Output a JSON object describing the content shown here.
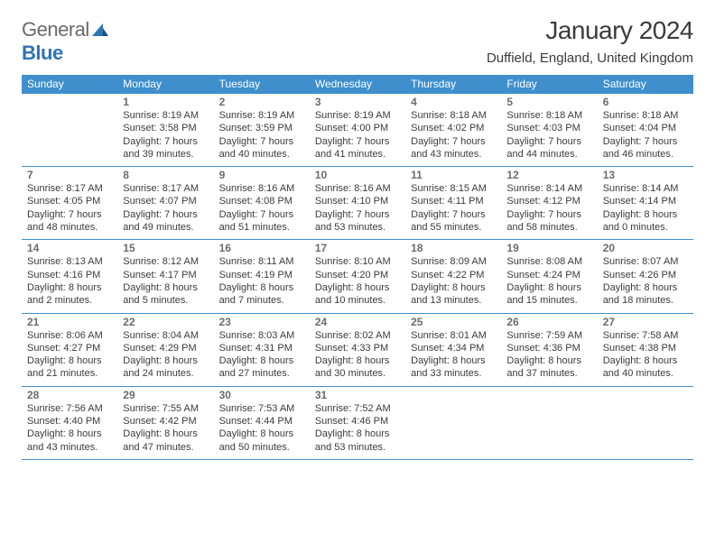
{
  "logo": {
    "general": "General",
    "blue": "Blue"
  },
  "title": "January 2024",
  "subtitle": "Duffield, England, United Kingdom",
  "colors": {
    "header_bg": "#3e8fcc",
    "header_fg": "#ffffff",
    "text": "#3b3b3b",
    "muted": "#6b6b6b",
    "rule": "#3e8fcc",
    "logo_blue": "#2f74b5",
    "background": "#ffffff"
  },
  "weekdays": [
    "Sunday",
    "Monday",
    "Tuesday",
    "Wednesday",
    "Thursday",
    "Friday",
    "Saturday"
  ],
  "weeks": [
    [
      null,
      {
        "n": "1",
        "sr": "8:19 AM",
        "ss": "3:58 PM",
        "d1": "Daylight: 7 hours",
        "d2": "and 39 minutes."
      },
      {
        "n": "2",
        "sr": "8:19 AM",
        "ss": "3:59 PM",
        "d1": "Daylight: 7 hours",
        "d2": "and 40 minutes."
      },
      {
        "n": "3",
        "sr": "8:19 AM",
        "ss": "4:00 PM",
        "d1": "Daylight: 7 hours",
        "d2": "and 41 minutes."
      },
      {
        "n": "4",
        "sr": "8:18 AM",
        "ss": "4:02 PM",
        "d1": "Daylight: 7 hours",
        "d2": "and 43 minutes."
      },
      {
        "n": "5",
        "sr": "8:18 AM",
        "ss": "4:03 PM",
        "d1": "Daylight: 7 hours",
        "d2": "and 44 minutes."
      },
      {
        "n": "6",
        "sr": "8:18 AM",
        "ss": "4:04 PM",
        "d1": "Daylight: 7 hours",
        "d2": "and 46 minutes."
      }
    ],
    [
      {
        "n": "7",
        "sr": "8:17 AM",
        "ss": "4:05 PM",
        "d1": "Daylight: 7 hours",
        "d2": "and 48 minutes."
      },
      {
        "n": "8",
        "sr": "8:17 AM",
        "ss": "4:07 PM",
        "d1": "Daylight: 7 hours",
        "d2": "and 49 minutes."
      },
      {
        "n": "9",
        "sr": "8:16 AM",
        "ss": "4:08 PM",
        "d1": "Daylight: 7 hours",
        "d2": "and 51 minutes."
      },
      {
        "n": "10",
        "sr": "8:16 AM",
        "ss": "4:10 PM",
        "d1": "Daylight: 7 hours",
        "d2": "and 53 minutes."
      },
      {
        "n": "11",
        "sr": "8:15 AM",
        "ss": "4:11 PM",
        "d1": "Daylight: 7 hours",
        "d2": "and 55 minutes."
      },
      {
        "n": "12",
        "sr": "8:14 AM",
        "ss": "4:12 PM",
        "d1": "Daylight: 7 hours",
        "d2": "and 58 minutes."
      },
      {
        "n": "13",
        "sr": "8:14 AM",
        "ss": "4:14 PM",
        "d1": "Daylight: 8 hours",
        "d2": "and 0 minutes."
      }
    ],
    [
      {
        "n": "14",
        "sr": "8:13 AM",
        "ss": "4:16 PM",
        "d1": "Daylight: 8 hours",
        "d2": "and 2 minutes."
      },
      {
        "n": "15",
        "sr": "8:12 AM",
        "ss": "4:17 PM",
        "d1": "Daylight: 8 hours",
        "d2": "and 5 minutes."
      },
      {
        "n": "16",
        "sr": "8:11 AM",
        "ss": "4:19 PM",
        "d1": "Daylight: 8 hours",
        "d2": "and 7 minutes."
      },
      {
        "n": "17",
        "sr": "8:10 AM",
        "ss": "4:20 PM",
        "d1": "Daylight: 8 hours",
        "d2": "and 10 minutes."
      },
      {
        "n": "18",
        "sr": "8:09 AM",
        "ss": "4:22 PM",
        "d1": "Daylight: 8 hours",
        "d2": "and 13 minutes."
      },
      {
        "n": "19",
        "sr": "8:08 AM",
        "ss": "4:24 PM",
        "d1": "Daylight: 8 hours",
        "d2": "and 15 minutes."
      },
      {
        "n": "20",
        "sr": "8:07 AM",
        "ss": "4:26 PM",
        "d1": "Daylight: 8 hours",
        "d2": "and 18 minutes."
      }
    ],
    [
      {
        "n": "21",
        "sr": "8:06 AM",
        "ss": "4:27 PM",
        "d1": "Daylight: 8 hours",
        "d2": "and 21 minutes."
      },
      {
        "n": "22",
        "sr": "8:04 AM",
        "ss": "4:29 PM",
        "d1": "Daylight: 8 hours",
        "d2": "and 24 minutes."
      },
      {
        "n": "23",
        "sr": "8:03 AM",
        "ss": "4:31 PM",
        "d1": "Daylight: 8 hours",
        "d2": "and 27 minutes."
      },
      {
        "n": "24",
        "sr": "8:02 AM",
        "ss": "4:33 PM",
        "d1": "Daylight: 8 hours",
        "d2": "and 30 minutes."
      },
      {
        "n": "25",
        "sr": "8:01 AM",
        "ss": "4:34 PM",
        "d1": "Daylight: 8 hours",
        "d2": "and 33 minutes."
      },
      {
        "n": "26",
        "sr": "7:59 AM",
        "ss": "4:36 PM",
        "d1": "Daylight: 8 hours",
        "d2": "and 37 minutes."
      },
      {
        "n": "27",
        "sr": "7:58 AM",
        "ss": "4:38 PM",
        "d1": "Daylight: 8 hours",
        "d2": "and 40 minutes."
      }
    ],
    [
      {
        "n": "28",
        "sr": "7:56 AM",
        "ss": "4:40 PM",
        "d1": "Daylight: 8 hours",
        "d2": "and 43 minutes."
      },
      {
        "n": "29",
        "sr": "7:55 AM",
        "ss": "4:42 PM",
        "d1": "Daylight: 8 hours",
        "d2": "and 47 minutes."
      },
      {
        "n": "30",
        "sr": "7:53 AM",
        "ss": "4:44 PM",
        "d1": "Daylight: 8 hours",
        "d2": "and 50 minutes."
      },
      {
        "n": "31",
        "sr": "7:52 AM",
        "ss": "4:46 PM",
        "d1": "Daylight: 8 hours",
        "d2": "and 53 minutes."
      },
      null,
      null,
      null
    ]
  ]
}
